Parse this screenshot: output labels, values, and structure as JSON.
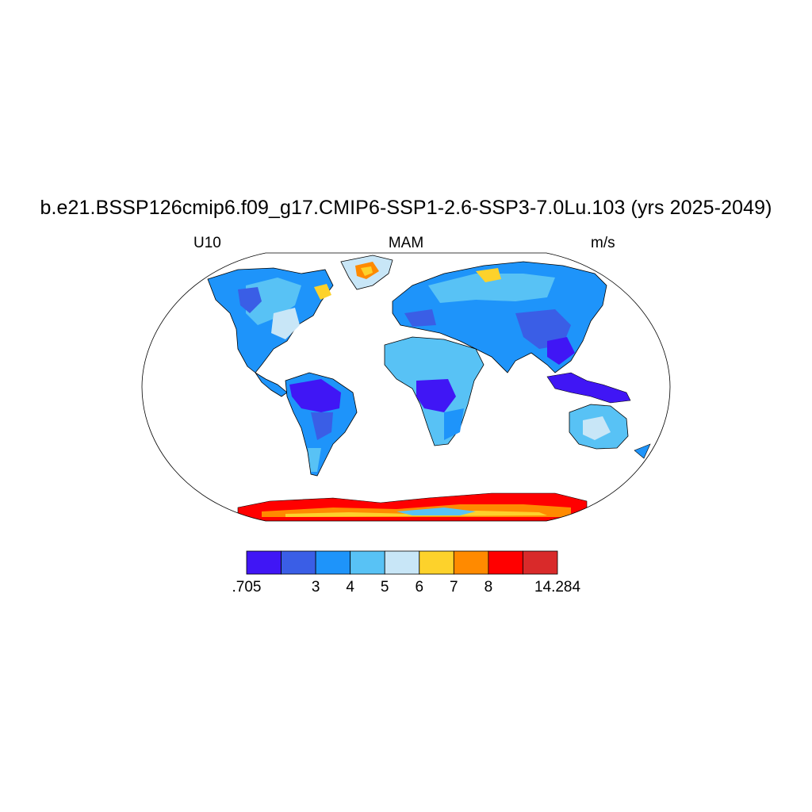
{
  "title": "b.e21.BSSP126cmip6.f09_g17.CMIP6-SSP1-2.6-SSP3-7.0Lu.103 (yrs 2025-2049)",
  "left_string": "U10",
  "center_string": "MAM",
  "right_string": "m/s",
  "colorbar": {
    "labels": [
      ".705",
      "3",
      "4",
      "5",
      "6",
      "7",
      "8",
      "14.284"
    ],
    "bins": [
      {
        "range": ".705–2",
        "color": "#4016F5"
      },
      {
        "range": "2–3",
        "color": "#3A5EE6"
      },
      {
        "range": "3–4",
        "color": "#1E94FA"
      },
      {
        "range": "4–5",
        "color": "#58C2F5"
      },
      {
        "range": "5–6",
        "color": "#C8E6F7"
      },
      {
        "range": "6–7",
        "color": "#FDD22B"
      },
      {
        "range": "7–8",
        "color": "#FF8A00"
      },
      {
        "range": "8–9",
        "color": "#FF0000"
      },
      {
        "range": "9–14.284",
        "color": "#D92A2A"
      }
    ]
  },
  "colors": {
    "ocean": "#ffffff",
    "coastline": "#000000",
    "c1": "#4016F5",
    "c2": "#3A5EE6",
    "c3": "#1E94FA",
    "c4": "#58C2F5",
    "c5": "#C8E6F7",
    "c6": "#FDD22B",
    "c7": "#FF8A00",
    "c8": "#FF0000",
    "c9": "#D92A2A"
  }
}
